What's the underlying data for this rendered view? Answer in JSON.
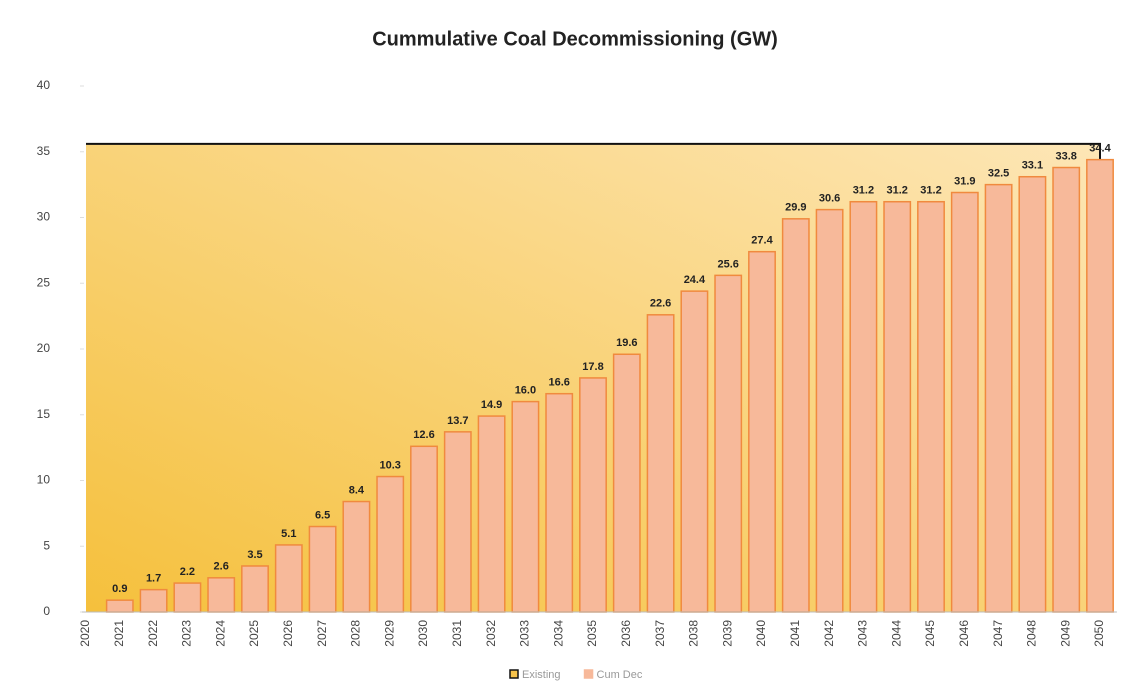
{
  "chart_data": {
    "type": "bar",
    "title": "Cummulative Coal Decommissioning (GW)",
    "categories": [
      "2020",
      "2021",
      "2022",
      "2023",
      "2024",
      "2025",
      "2026",
      "2027",
      "2028",
      "2029",
      "2030",
      "2031",
      "2032",
      "2033",
      "2034",
      "2035",
      "2036",
      "2037",
      "2038",
      "2039",
      "2040",
      "2041",
      "2042",
      "2043",
      "2044",
      "2045",
      "2046",
      "2047",
      "2048",
      "2049",
      "2050"
    ],
    "series": [
      {
        "name": "Existing",
        "type": "area",
        "color": "#f7c34a",
        "values": [
          35.6,
          35.6,
          35.6,
          35.6,
          35.6,
          35.6,
          35.6,
          35.6,
          35.6,
          35.6,
          35.6,
          35.6,
          35.6,
          35.6,
          35.6,
          35.6,
          35.6,
          35.6,
          35.6,
          35.6,
          35.6,
          35.6,
          35.6,
          35.6,
          35.6,
          35.6,
          35.6,
          35.6,
          35.6,
          35.6,
          35.6
        ]
      },
      {
        "name": "Cum Dec",
        "type": "bar",
        "color": "#f7b99a",
        "values": [
          0,
          0.9,
          1.7,
          2.2,
          2.6,
          3.5,
          5.1,
          6.5,
          8.4,
          10.3,
          12.6,
          13.7,
          14.9,
          16.0,
          16.6,
          17.8,
          19.6,
          22.6,
          24.4,
          25.6,
          27.4,
          29.9,
          30.6,
          31.2,
          31.2,
          31.2,
          31.9,
          32.5,
          33.1,
          33.8,
          34.4
        ],
        "value_labels": [
          null,
          "0.9",
          "1.7",
          "2.2",
          "2.6",
          "3.5",
          "5.1",
          "6.5",
          "8.4",
          "10.3",
          "12.6",
          "13.7",
          "14.9",
          "16.0",
          "16.6",
          "17.8",
          "19.6",
          "22.6",
          "24.4",
          "25.6",
          "27.4",
          "29.9",
          "30.6",
          "31.2",
          "31.2",
          "31.2",
          "31.9",
          "32.5",
          "33.1",
          "33.8",
          "34.4"
        ]
      }
    ],
    "ylim": [
      0,
      40
    ],
    "yticks": [
      0,
      5,
      10,
      15,
      20,
      25,
      30,
      35,
      40
    ],
    "grid": false,
    "legend": "bottom"
  }
}
